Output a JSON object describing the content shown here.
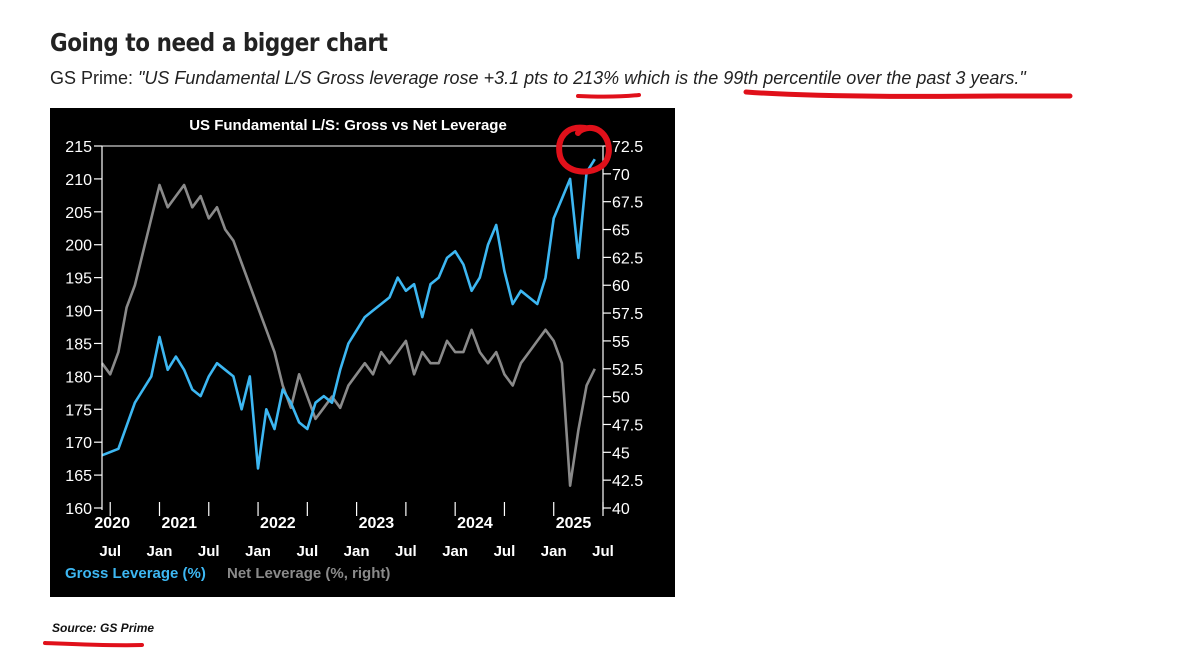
{
  "headline": "Going to need a bigger chart",
  "quote": {
    "prefix": "GS Prime: ",
    "text": "\"US Fundamental L/S Gross leverage rose +3.1 pts to 213% which is the 99th percentile over the past 3 years.\""
  },
  "source": "Source: GS Prime",
  "colors": {
    "background": "#000000",
    "gross": "#3db7f2",
    "net": "#8a8a8a",
    "axis": "#ffffff",
    "annotation": "#e0101a"
  },
  "chart_data": {
    "type": "line",
    "title": "US Fundamental L/S: Gross vs Net Leverage",
    "x_years": [
      "2020",
      "2021",
      "2022",
      "2023",
      "2024",
      "2025"
    ],
    "x_months": [
      "Jul",
      "Jan",
      "Jul",
      "Jan",
      "Jul",
      "Jan",
      "Jul",
      "Jan",
      "Jul",
      "Jan",
      "Jul"
    ],
    "xlim": [
      "2020-06",
      "2025-07"
    ],
    "y_left": {
      "ylim": [
        160,
        215
      ],
      "ticks": [
        "215",
        "210",
        "205",
        "200",
        "195",
        "190",
        "185",
        "180",
        "175",
        "170",
        "165",
        "160"
      ]
    },
    "y_right": {
      "ylim": [
        40,
        72.5
      ],
      "ticks": [
        "72.5",
        "70",
        "67.5",
        "65",
        "62.5",
        "60",
        "57.5",
        "55",
        "52.5",
        "50",
        "47.5",
        "45",
        "42.5",
        "40"
      ]
    },
    "legend_position": "bottom-left",
    "series": [
      {
        "name": "Gross Leverage (%)",
        "axis": "left",
        "x": [
          "2020-06",
          "2020-08",
          "2020-10",
          "2020-11",
          "2020-12",
          "2021-01",
          "2021-02",
          "2021-03",
          "2021-04",
          "2021-05",
          "2021-06",
          "2021-07",
          "2021-08",
          "2021-09",
          "2021-10",
          "2021-11",
          "2021-12",
          "2022-01",
          "2022-02",
          "2022-03",
          "2022-04",
          "2022-05",
          "2022-06",
          "2022-07",
          "2022-08",
          "2022-09",
          "2022-10",
          "2022-11",
          "2022-12",
          "2023-01",
          "2023-02",
          "2023-03",
          "2023-04",
          "2023-05",
          "2023-06",
          "2023-07",
          "2023-08",
          "2023-09",
          "2023-10",
          "2023-11",
          "2023-12",
          "2024-01",
          "2024-02",
          "2024-03",
          "2024-04",
          "2024-05",
          "2024-06",
          "2024-07",
          "2024-08",
          "2024-09",
          "2024-10",
          "2024-11",
          "2024-12",
          "2025-01",
          "2025-02",
          "2025-03",
          "2025-04",
          "2025-05",
          "2025-06"
        ],
        "values": [
          168,
          169,
          176,
          178,
          180,
          186,
          181,
          183,
          181,
          178,
          177,
          180,
          182,
          181,
          180,
          175,
          180,
          166,
          175,
          172,
          178,
          176,
          173,
          172,
          176,
          177,
          176,
          181,
          185,
          187,
          189,
          190,
          191,
          192,
          195,
          193,
          194,
          189,
          194,
          195,
          198,
          199,
          197,
          193,
          195,
          200,
          203,
          196,
          191,
          193,
          192,
          191,
          195,
          204,
          207,
          210,
          198,
          211,
          213
        ]
      },
      {
        "name": "Net Leverage (%, right)",
        "axis": "right",
        "x": [
          "2020-06",
          "2020-07",
          "2020-08",
          "2020-09",
          "2020-10",
          "2020-11",
          "2020-12",
          "2021-01",
          "2021-02",
          "2021-03",
          "2021-04",
          "2021-05",
          "2021-06",
          "2021-07",
          "2021-08",
          "2021-09",
          "2021-10",
          "2021-11",
          "2021-12",
          "2022-01",
          "2022-02",
          "2022-03",
          "2022-04",
          "2022-05",
          "2022-06",
          "2022-07",
          "2022-08",
          "2022-09",
          "2022-10",
          "2022-11",
          "2022-12",
          "2023-01",
          "2023-02",
          "2023-03",
          "2023-04",
          "2023-05",
          "2023-06",
          "2023-07",
          "2023-08",
          "2023-09",
          "2023-10",
          "2023-11",
          "2023-12",
          "2024-01",
          "2024-02",
          "2024-03",
          "2024-04",
          "2024-05",
          "2024-06",
          "2024-07",
          "2024-08",
          "2024-09",
          "2024-10",
          "2024-11",
          "2024-12",
          "2025-01",
          "2025-02",
          "2025-03",
          "2025-04",
          "2025-05",
          "2025-06"
        ],
        "values": [
          53,
          52,
          54,
          58,
          60,
          63,
          66,
          69,
          67,
          68,
          69,
          67,
          68,
          66,
          67,
          65,
          64,
          62,
          60,
          58,
          56,
          54,
          51,
          49,
          52,
          50,
          48,
          49,
          50,
          49,
          51,
          52,
          53,
          52,
          54,
          53,
          54,
          55,
          52,
          54,
          53,
          53,
          55,
          54,
          54,
          56,
          54,
          53,
          54,
          52,
          51,
          53,
          54,
          55,
          56,
          55,
          53,
          42,
          47,
          51,
          52.5
        ]
      }
    ]
  }
}
